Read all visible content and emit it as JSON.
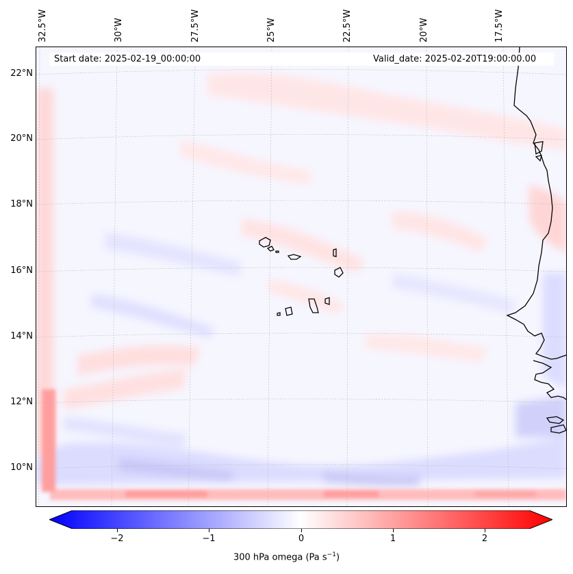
{
  "map": {
    "start_date": "Start date: 2025-02-19_00:00:00",
    "valid_date": "Valid_date: 2025-02-20T19:00:00.00",
    "lat_labels": [
      "22°N",
      "20°N",
      "18°N",
      "16°N",
      "14°N",
      "12°N",
      "10°N"
    ],
    "lon_labels": [
      "32.5°W",
      "30°W",
      "27.5°W",
      "25°W",
      "22.5°W",
      "20°W",
      "17.5°W"
    ],
    "colormap": {
      "negative": "#0000ff",
      "zero": "#ffffff",
      "positive": "#ff0000"
    },
    "coastline_color": "#000000"
  },
  "colorbar": {
    "ticks": [
      "−2",
      "−1",
      "0",
      "1",
      "2"
    ],
    "tick_values": [
      -2,
      -1,
      0,
      1,
      2
    ],
    "range": [
      -2.6,
      2.6
    ],
    "label_main": "300 hPa omega (Pa s",
    "label_sup": "−1",
    "label_end": ")"
  }
}
